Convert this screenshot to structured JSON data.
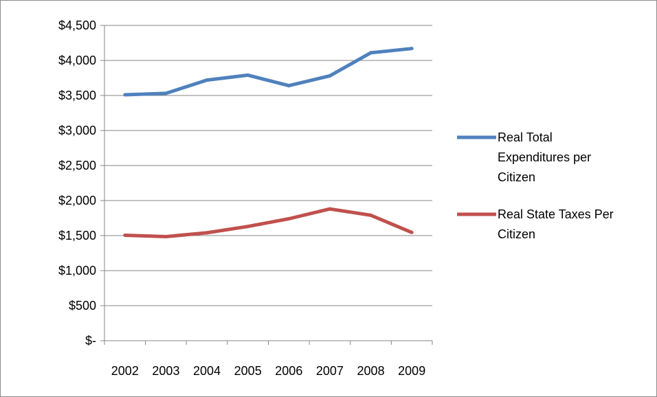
{
  "chart_data": {
    "type": "line",
    "title": "",
    "xlabel": "",
    "ylabel": "",
    "x": [
      "2002",
      "2003",
      "2004",
      "2005",
      "2006",
      "2007",
      "2008",
      "2009"
    ],
    "y_ticks": [
      0,
      500,
      1000,
      1500,
      2000,
      2500,
      3000,
      3500,
      4000,
      4500
    ],
    "y_tick_labels": [
      "$-",
      "$500",
      "$1,000",
      "$1,500",
      "$2,000",
      "$2,500",
      "$3,000",
      "$3,500",
      "$4,000",
      "$4,500"
    ],
    "ylim": [
      0,
      4500
    ],
    "grid": "horizontal",
    "legend_position": "right",
    "series": [
      {
        "name": "Real Total Expenditures per Citizen",
        "legend_lines": [
          "Real Total",
          "Expenditures per",
          "Citizen"
        ],
        "color": "#4f81bd",
        "values": [
          3510,
          3530,
          3720,
          3790,
          3640,
          3780,
          4110,
          4170
        ]
      },
      {
        "name": "Real State Taxes Per Citizen",
        "legend_lines": [
          "Real State Taxes Per",
          "Citizen"
        ],
        "color": "#c0504d",
        "values": [
          1505,
          1485,
          1540,
          1630,
          1740,
          1880,
          1790,
          1545
        ]
      }
    ]
  }
}
